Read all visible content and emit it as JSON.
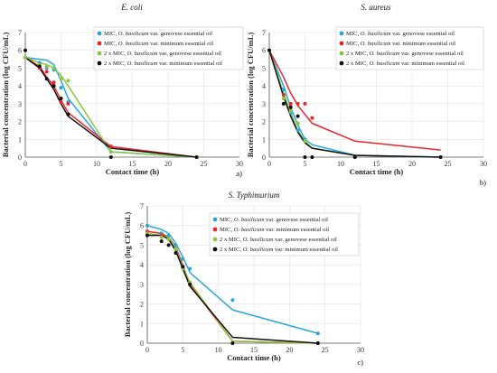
{
  "legend_entries": [
    {
      "lead": "MIC, ",
      "species": "O. basilicum",
      "tail": " var. genovese essential oil"
    },
    {
      "lead": "MIC, ",
      "species": "O. basilicum",
      "tail": " var. minimum essential oil"
    },
    {
      "lead": "2 x MIC, ",
      "species": "O. basilicum",
      "tail": " var. genovese essential oil"
    },
    {
      "lead": "2 x MIC, ",
      "species": "O. basilicum",
      "tail": " var. minimum essential oil"
    }
  ],
  "series_colors": [
    "#2aa6dc",
    "#e8262b",
    "#8cc63f",
    "#111111"
  ],
  "chart_data": [
    {
      "type": "line",
      "panel_label": "a)",
      "title": "E. coli",
      "xlabel": "Contact time (h)",
      "ylabel": "Bacterial concentration (log CFU/mL)",
      "xlim": [
        0,
        30
      ],
      "ylim": [
        0,
        7
      ],
      "xticks": [
        "0",
        "5",
        "10",
        "15",
        "20",
        "25",
        "30"
      ],
      "yticks": [
        "0",
        "1",
        "2",
        "3",
        "4",
        "5",
        "6",
        "7"
      ],
      "grid": true,
      "legend_position": "top-right",
      "series": [
        {
          "lines": {
            "x": [
              0,
              2,
              3,
              4,
              5,
              6,
              12,
              24
            ],
            "y": [
              5.6,
              5.5,
              5.45,
              5.2,
              4.3,
              3.3,
              0.3,
              0.0
            ]
          },
          "points": {
            "x": [
              0,
              2,
              3,
              4,
              5,
              6,
              12,
              24
            ],
            "y": [
              5.6,
              5.3,
              5.0,
              4.9,
              3.9,
              3.1,
              0.3,
              0.0
            ]
          }
        },
        {
          "lines": {
            "x": [
              0,
              2,
              3,
              4,
              5,
              6,
              12,
              24
            ],
            "y": [
              5.6,
              5.1,
              4.5,
              4.0,
              3.2,
              2.5,
              0.6,
              0.0
            ]
          },
          "points": {
            "x": [
              0,
              2,
              3,
              4,
              5,
              6,
              12,
              24
            ],
            "y": [
              5.6,
              5.0,
              4.8,
              4.2,
              3.1,
              3.0,
              0.6,
              0.0
            ]
          }
        },
        {
          "lines": {
            "x": [
              0,
              2,
              3,
              4,
              5,
              6,
              12,
              24
            ],
            "y": [
              5.6,
              5.3,
              5.2,
              5.0,
              4.6,
              4.0,
              0.3,
              0.0
            ]
          },
          "points": {
            "x": [
              0,
              2,
              3,
              4,
              5,
              6,
              12,
              24
            ],
            "y": [
              5.6,
              5.2,
              5.1,
              5.0,
              4.4,
              4.3,
              0.3,
              0.0
            ]
          }
        },
        {
          "lines": {
            "x": [
              0,
              2,
              3,
              4,
              5,
              6,
              12,
              24
            ],
            "y": [
              5.6,
              5.0,
              4.4,
              3.8,
              3.0,
              2.3,
              0.5,
              0.0
            ]
          },
          "points": {
            "x": [
              0,
              2,
              3,
              4,
              5,
              6,
              12,
              24
            ],
            "y": [
              6.0,
              5.1,
              4.4,
              4.0,
              3.3,
              2.4,
              0.0,
              0.0
            ]
          }
        }
      ]
    },
    {
      "type": "line",
      "panel_label": "b)",
      "title": "S. aureus",
      "xlabel": "Contact time (h)",
      "ylabel": "Bacterial concentration (log CFU/mL)",
      "xlim": [
        0,
        30
      ],
      "ylim": [
        0,
        7
      ],
      "xticks": [
        "0",
        "5",
        "10",
        "15",
        "20",
        "25",
        "30"
      ],
      "yticks": [
        "0",
        "1",
        "2",
        "3",
        "4",
        "5",
        "6",
        "7"
      ],
      "grid": true,
      "legend_position": "top-right",
      "series": [
        {
          "lines": {
            "x": [
              0,
              2,
              3,
              4,
              5,
              6,
              12,
              24
            ],
            "y": [
              6.0,
              4.0,
              2.8,
              1.8,
              1.0,
              0.7,
              0.1,
              0.0
            ]
          },
          "points": {
            "x": [
              0,
              2,
              3,
              4,
              5,
              6,
              12,
              24
            ],
            "y": [
              6.0,
              3.8,
              2.5,
              1.5,
              1.0,
              0.0,
              0.0,
              0.0
            ]
          }
        },
        {
          "lines": {
            "x": [
              0,
              2,
              3,
              4,
              5,
              6,
              12,
              24
            ],
            "y": [
              6.0,
              4.5,
              3.6,
              2.9,
              2.4,
              1.9,
              0.9,
              0.4
            ]
          },
          "points": {
            "x": [
              0,
              2,
              3,
              4,
              5,
              6,
              12,
              24
            ],
            "y": [
              6.0,
              3.5,
              3.0,
              3.0,
              3.0,
              2.2,
              0.0,
              0.0
            ]
          }
        },
        {
          "lines": {
            "x": [
              0,
              2,
              3,
              4,
              5,
              6,
              12,
              24
            ],
            "y": [
              6.0,
              3.6,
              2.5,
              1.5,
              0.9,
              0.5,
              0.1,
              0.0
            ]
          },
          "points": {
            "x": [
              0,
              2,
              3,
              4,
              5,
              6,
              12,
              24
            ],
            "y": [
              6.0,
              3.3,
              2.6,
              1.9,
              0.9,
              0.0,
              0.0,
              0.0
            ]
          }
        },
        {
          "lines": {
            "x": [
              0,
              2,
              3,
              4,
              5,
              6,
              12,
              24
            ],
            "y": [
              6.0,
              3.4,
              2.3,
              1.4,
              0.8,
              0.5,
              0.1,
              0.0
            ]
          },
          "points": {
            "x": [
              0,
              2,
              3,
              4,
              5,
              6,
              12,
              24
            ],
            "y": [
              6.0,
              3.0,
              2.8,
              2.3,
              0.0,
              0.0,
              0.0,
              0.0
            ]
          }
        }
      ]
    },
    {
      "type": "line",
      "panel_label": "c)",
      "title": "S. Typhimurium",
      "xlabel": "Contact time (h)",
      "ylabel": "Bacterial concentration (log CFU/mL)",
      "xlim": [
        0,
        30
      ],
      "ylim": [
        0,
        7
      ],
      "xticks": [
        "0",
        "5",
        "10",
        "15",
        "20",
        "25",
        "30"
      ],
      "yticks": [
        "0",
        "1",
        "2",
        "3",
        "4",
        "5",
        "6",
        "7"
      ],
      "grid": true,
      "legend_position": "top-right",
      "series": [
        {
          "lines": {
            "x": [
              0,
              2,
              3,
              4,
              5,
              6,
              12,
              24
            ],
            "y": [
              6.0,
              5.8,
              5.6,
              5.1,
              4.4,
              3.6,
              1.7,
              0.5
            ]
          },
          "points": {
            "x": [
              0,
              2,
              3,
              4,
              5,
              6,
              12,
              24
            ],
            "y": [
              6.0,
              5.6,
              5.5,
              5.0,
              4.3,
              3.8,
              2.2,
              0.5
            ]
          }
        },
        {
          "lines": {
            "x": [
              0,
              2,
              3,
              4,
              5,
              6,
              12,
              24
            ],
            "y": [
              5.7,
              5.6,
              5.4,
              4.9,
              4.0,
              3.0,
              0.1,
              0.0
            ]
          },
          "points": {
            "x": [
              0,
              2,
              3,
              4,
              5,
              6,
              12,
              24
            ],
            "y": [
              5.7,
              5.5,
              5.3,
              4.8,
              3.9,
              3.0,
              0.0,
              0.0
            ]
          }
        },
        {
          "lines": {
            "x": [
              0,
              2,
              3,
              4,
              5,
              6,
              12,
              24
            ],
            "y": [
              5.6,
              5.5,
              5.4,
              4.8,
              3.9,
              3.1,
              0.1,
              0.0
            ]
          },
          "points": {
            "x": [
              0,
              2,
              3,
              4,
              5,
              6,
              12,
              24
            ],
            "y": [
              5.6,
              5.4,
              5.3,
              4.8,
              3.8,
              3.1,
              0.0,
              0.0
            ]
          }
        },
        {
          "lines": {
            "x": [
              0,
              2,
              3,
              4,
              5,
              6,
              12,
              24
            ],
            "y": [
              5.5,
              5.5,
              5.3,
              4.7,
              3.8,
              2.9,
              0.3,
              0.0
            ]
          },
          "points": {
            "x": [
              0,
              2,
              3,
              4,
              5,
              6,
              12,
              24
            ],
            "y": [
              5.5,
              5.2,
              5.0,
              4.6,
              3.9,
              3.0,
              0.0,
              0.0
            ]
          }
        }
      ]
    }
  ]
}
